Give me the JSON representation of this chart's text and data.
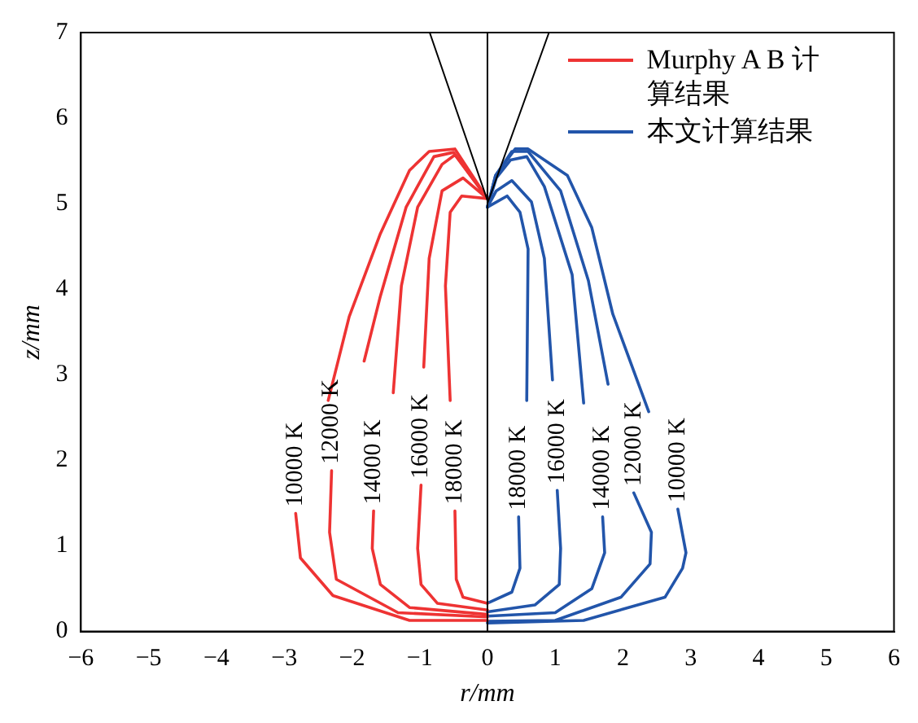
{
  "chart_data": {
    "type": "line",
    "xlabel": "r/mm",
    "ylabel": "z/mm",
    "xlim": [
      -6,
      6
    ],
    "xticks": [
      -6,
      -5,
      -4,
      -3,
      -2,
      -1,
      0,
      1,
      2,
      3,
      4,
      5,
      6
    ],
    "ylim": [
      0,
      7
    ],
    "yticks": [
      0,
      1,
      2,
      3,
      4,
      5,
      6,
      7
    ],
    "grid": false,
    "legend": "top right",
    "marker": "none",
    "line_style": "solid",
    "series": [
      {
        "name": "Murphy A B 计算结果",
        "color": "#ee3333",
        "x": [
          0,
          -1.15,
          -2.28,
          -2.76,
          -2.83,
          -2.6,
          -2.35,
          -2.04,
          -1.58,
          -1.15,
          -0.86,
          -0.48,
          0
        ],
        "values": [
          0.13,
          0.13,
          0.42,
          0.86,
          1.38,
          null,
          2.7,
          3.68,
          4.65,
          5.39,
          5.61,
          5.64,
          5.06
        ]
      },
      {
        "color": "#ee3333",
        "x": [
          0,
          -1.32,
          -2.23,
          -2.33,
          -2.3,
          -2.1,
          -1.82,
          -1.58,
          -1.2,
          -0.79,
          -0.5,
          0
        ],
        "values": [
          0.17,
          0.22,
          0.61,
          1.16,
          1.88,
          null,
          3.16,
          3.92,
          4.96,
          5.55,
          5.6,
          5.06
        ]
      },
      {
        "color": "#ee3333",
        "x": [
          0,
          -1.15,
          -1.58,
          -1.7,
          -1.68,
          -1.5,
          -1.39,
          -1.27,
          -1.03,
          -0.67,
          -0.48,
          0
        ],
        "values": [
          0.2,
          0.28,
          0.55,
          0.97,
          1.41,
          null,
          2.79,
          4.04,
          4.96,
          5.46,
          5.57,
          5.06
        ]
      },
      {
        "color": "#ee3333",
        "x": [
          0,
          -0.74,
          -0.98,
          -1.03,
          -0.98,
          -0.96,
          -0.94,
          -0.86,
          -0.67,
          -0.36,
          0
        ],
        "values": [
          0.25,
          0.33,
          0.55,
          0.97,
          1.71,
          null,
          3.09,
          4.36,
          5.15,
          5.3,
          5.06
        ]
      },
      {
        "color": "#ee3333",
        "x": [
          0,
          -0.36,
          -0.46,
          -0.48,
          -0.5,
          -0.55,
          -0.62,
          -0.55,
          -0.38,
          0
        ],
        "values": [
          0.33,
          0.4,
          0.61,
          1.41,
          null,
          2.7,
          4.04,
          4.9,
          5.09,
          5.06
        ]
      },
      {
        "name": "本文计算结果",
        "color": "#2255aa",
        "x": [
          0,
          0.36,
          0.48,
          0.46,
          0.5,
          0.58,
          0.6,
          0.48,
          0.29,
          0
        ],
        "values": [
          0.33,
          0.46,
          0.74,
          1.34,
          null,
          2.7,
          4.47,
          4.9,
          5.09,
          4.96
        ]
      },
      {
        "color": "#2255aa",
        "x": [
          0,
          0.7,
          1.06,
          1.08,
          1.03,
          1.0,
          0.96,
          0.84,
          0.65,
          0.36,
          0.13,
          0
        ],
        "values": [
          0.23,
          0.31,
          0.55,
          0.97,
          1.65,
          null,
          2.94,
          4.36,
          5.02,
          5.27,
          5.15,
          4.96
        ]
      },
      {
        "color": "#2255aa",
        "x": [
          0,
          1.0,
          1.54,
          1.73,
          1.7,
          1.55,
          1.42,
          1.25,
          0.84,
          0.58,
          0.34,
          0.13,
          0
        ],
        "values": [
          0.18,
          0.22,
          0.5,
          0.92,
          1.34,
          null,
          2.67,
          4.17,
          5.2,
          5.55,
          5.51,
          5.3,
          4.96
        ]
      },
      {
        "color": "#2255aa",
        "x": [
          0,
          1.0,
          1.97,
          2.4,
          2.42,
          2.16,
          2.0,
          1.78,
          1.49,
          1.08,
          0.6,
          0.36,
          0.12,
          0
        ],
        "values": [
          0.12,
          0.13,
          0.4,
          0.79,
          1.16,
          1.62,
          null,
          2.89,
          4.1,
          5.15,
          5.61,
          5.61,
          5.33,
          4.96
        ]
      },
      {
        "color": "#2255aa",
        "x": [
          0,
          1.42,
          2.62,
          2.88,
          2.93,
          2.81,
          2.6,
          2.38,
          1.85,
          1.54,
          1.18,
          0.6,
          0.41,
          0.12,
          0
        ],
        "values": [
          0.1,
          0.13,
          0.4,
          0.74,
          0.92,
          1.43,
          null,
          2.57,
          3.71,
          4.72,
          5.33,
          5.64,
          5.64,
          5.33,
          4.96
        ]
      }
    ],
    "ref_lines": [
      {
        "axis": "x",
        "value": 0,
        "color": "#000000",
        "line_style": "solid"
      }
    ],
    "annotations": [
      {
        "text": "10000 K",
        "x": -2.83,
        "y": 1.38
      },
      {
        "text": "12000 K",
        "x": -2.3,
        "y": 1.88
      },
      {
        "text": "14000 K",
        "x": -1.68,
        "y": 1.41
      },
      {
        "text": "16000 K",
        "x": -0.98,
        "y": 1.71
      },
      {
        "text": "18000 K",
        "x": -0.48,
        "y": 1.41
      },
      {
        "text": "18000 K",
        "x": 0.46,
        "y": 1.34
      },
      {
        "text": "16000 K",
        "x": 1.03,
        "y": 1.65
      },
      {
        "text": "14000 K",
        "x": 1.7,
        "y": 1.34
      },
      {
        "text": "12000 K",
        "x": 2.16,
        "y": 1.62
      },
      {
        "text": "10000 K",
        "x": 2.81,
        "y": 1.43
      }
    ]
  }
}
